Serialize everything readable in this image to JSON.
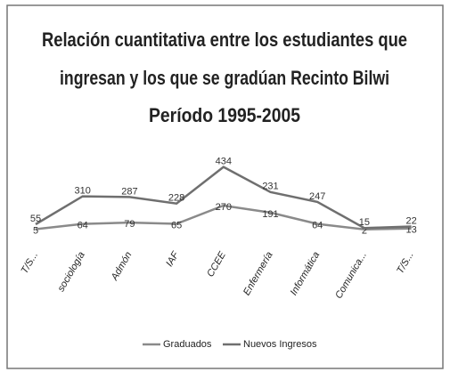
{
  "chart_data": {
    "type": "line",
    "stacked": true,
    "title": [
      "Relación cuantitativa entre los estudiantes que",
      "ingresan y los que se gradúan Recinto Bilwi",
      "Período  1995-2005"
    ],
    "categories": [
      "T/S...",
      "sociología",
      "Admón",
      "IAF",
      "CCEE",
      "Enfermería",
      "Informática",
      "Comunica...",
      "T/S..."
    ],
    "series": [
      {
        "name": "Graduados",
        "color": "#8a8a8a",
        "values": [
          5,
          64,
          79,
          65,
          270,
          191,
          64,
          2,
          13
        ]
      },
      {
        "name": "Nuevos Ingresos",
        "color": "#6f6f6f",
        "values": [
          55,
          310,
          287,
          228,
          434,
          231,
          247,
          15,
          22
        ]
      }
    ],
    "legend": "bottom",
    "grid": false
  }
}
